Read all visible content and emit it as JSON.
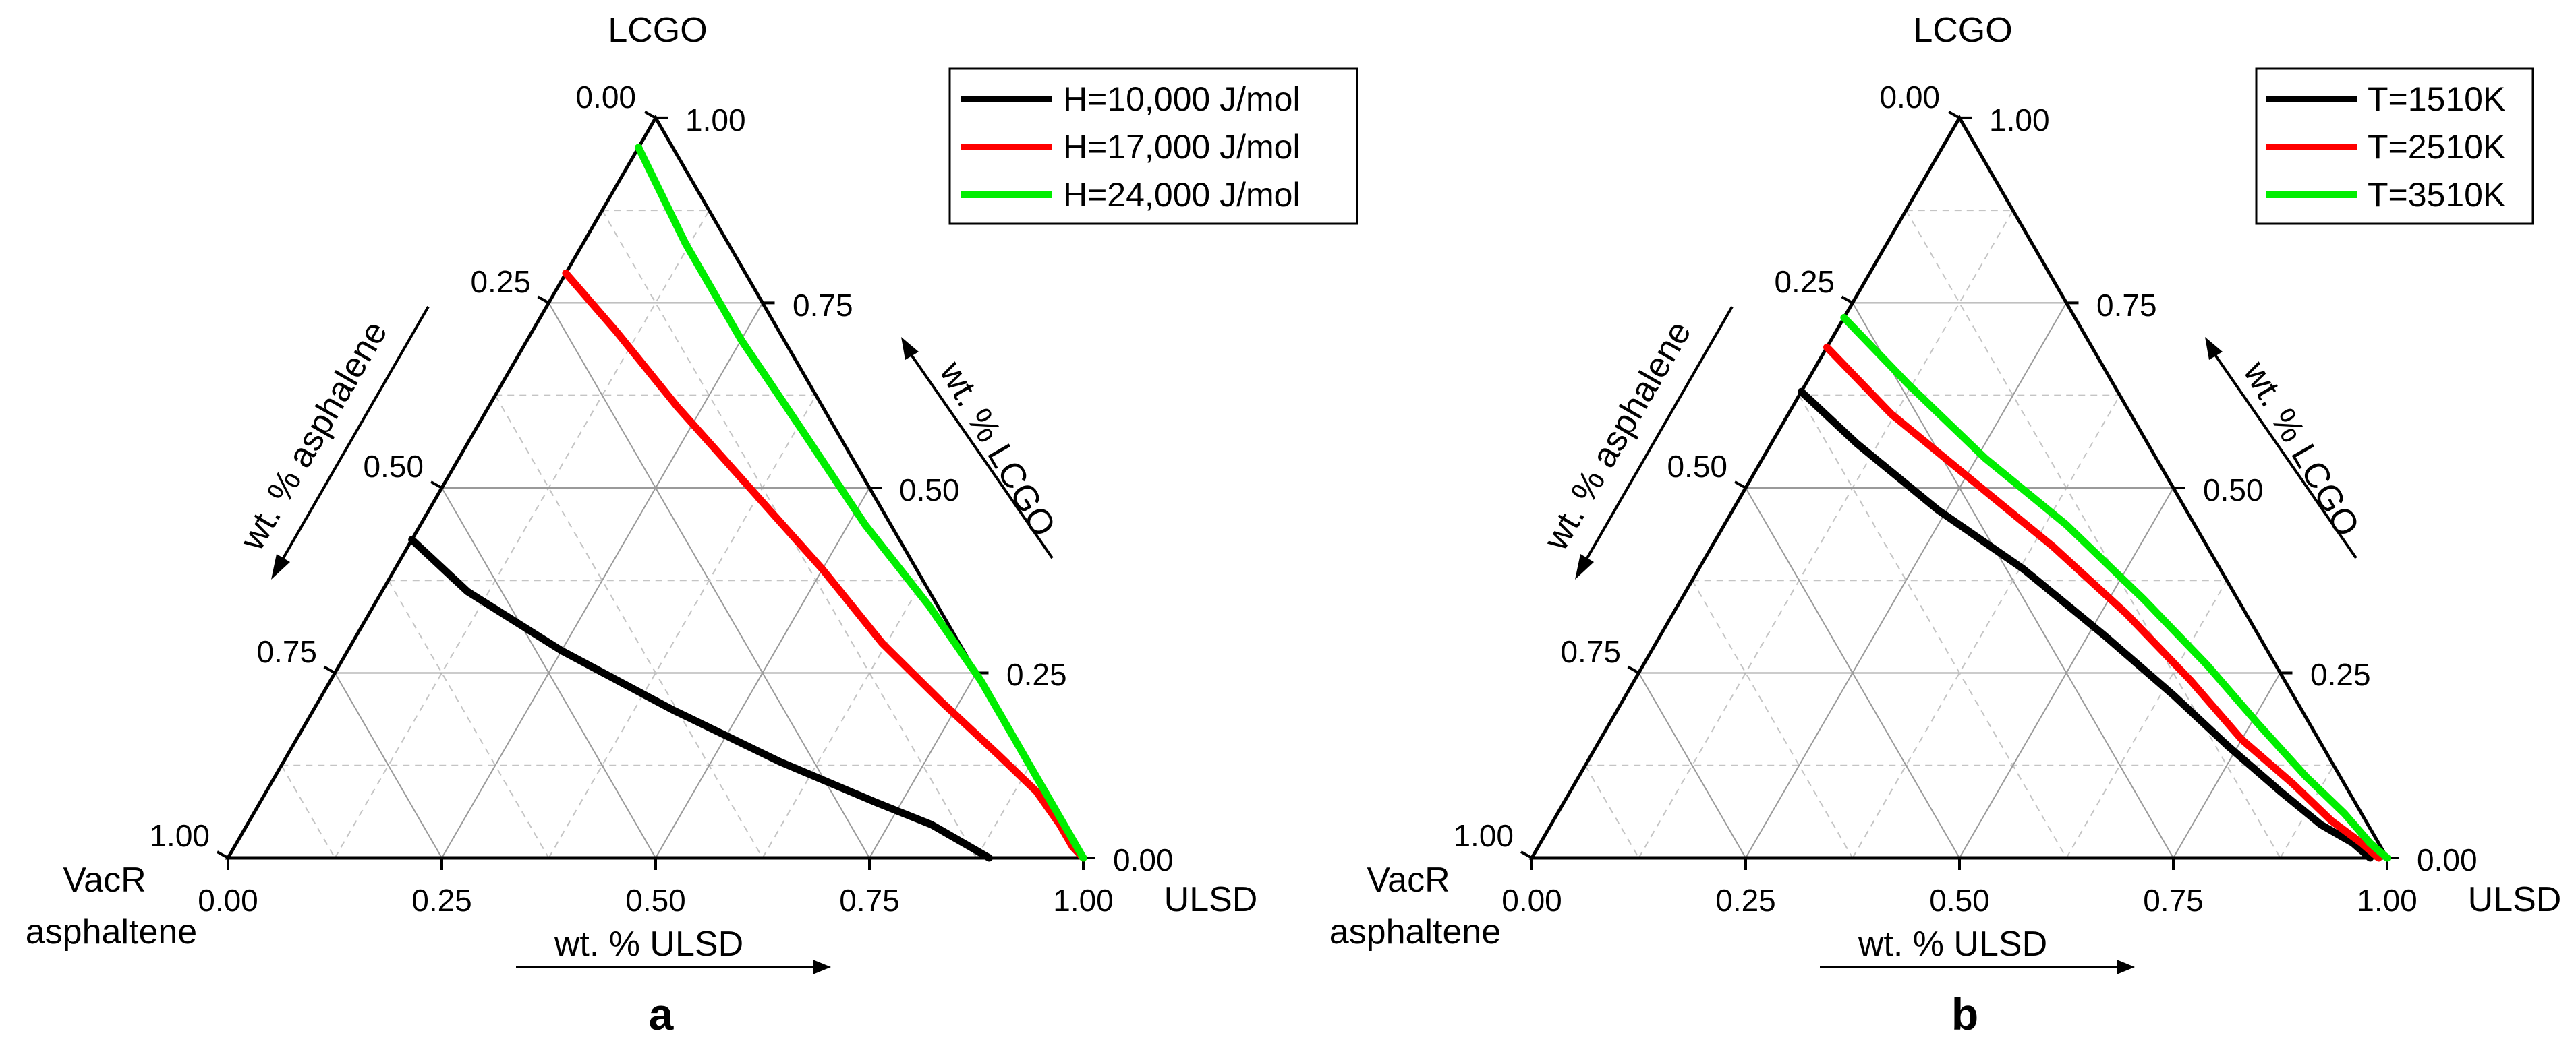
{
  "chart_data": [
    {
      "type": "line",
      "subtype": "ternary",
      "panel_label": "a",
      "vertices": {
        "top": "LCGO",
        "left": [
          "VacR",
          "asphaltene"
        ],
        "right": "ULSD"
      },
      "axis_titles": {
        "left": "wt. % asphalene",
        "right": "wt. % LCGO",
        "bottom": "wt. % ULSD"
      },
      "ticks": {
        "bottom": [
          "0.00",
          "0.25",
          "0.50",
          "0.75",
          "1.00"
        ],
        "right": [
          "0.00",
          "0.25",
          "0.50",
          "0.75",
          "1.00"
        ],
        "left": [
          "0.00",
          "0.25",
          "0.50",
          "0.75",
          "1.00"
        ]
      },
      "composition_order": [
        "ULSD",
        "LCGO"
      ],
      "legend_position": "top-right",
      "series": [
        {
          "name": "H=10,000 J/mol",
          "color": "#000000",
          "points": [
            [
              0.0,
              0.43
            ],
            [
              0.1,
              0.36
            ],
            [
              0.25,
              0.28
            ],
            [
              0.42,
              0.2
            ],
            [
              0.58,
              0.13
            ],
            [
              0.72,
              0.075
            ],
            [
              0.8,
              0.045
            ],
            [
              0.86,
              0.015
            ],
            [
              0.89,
              0.0
            ]
          ]
        },
        {
          "name": "H=17,000 J/mol",
          "color": "#ff0000",
          "points": [
            [
              0.0,
              0.79
            ],
            [
              0.1,
              0.71
            ],
            [
              0.22,
              0.61
            ],
            [
              0.36,
              0.5
            ],
            [
              0.5,
              0.39
            ],
            [
              0.62,
              0.29
            ],
            [
              0.73,
              0.21
            ],
            [
              0.83,
              0.14
            ],
            [
              0.9,
              0.09
            ],
            [
              0.95,
              0.045
            ],
            [
              0.98,
              0.015
            ],
            [
              1.0,
              0.0
            ]
          ]
        },
        {
          "name": "H=24,000 J/mol",
          "color": "#00ee00",
          "points": [
            [
              0.0,
              0.96
            ],
            [
              0.12,
              0.83
            ],
            [
              0.25,
              0.7
            ],
            [
              0.38,
              0.58
            ],
            [
              0.52,
              0.45
            ],
            [
              0.65,
              0.34
            ],
            [
              0.76,
              0.24
            ],
            [
              0.86,
              0.14
            ],
            [
              0.94,
              0.06
            ],
            [
              1.0,
              0.0
            ]
          ]
        }
      ]
    },
    {
      "type": "line",
      "subtype": "ternary",
      "panel_label": "b",
      "vertices": {
        "top": "LCGO",
        "left": [
          "VacR",
          "asphaltene"
        ],
        "right": "ULSD"
      },
      "axis_titles": {
        "left": "wt. % asphalene",
        "right": "wt. % LCGO",
        "bottom": "wt. % ULSD"
      },
      "ticks": {
        "bottom": [
          "0.00",
          "0.25",
          "0.50",
          "0.75",
          "1.00"
        ],
        "right": [
          "0.00",
          "0.25",
          "0.50",
          "0.75",
          "1.00"
        ],
        "left": [
          "0.00",
          "0.25",
          "0.50",
          "0.75",
          "1.00"
        ]
      },
      "composition_order": [
        "ULSD",
        "LCGO"
      ],
      "legend_position": "top-right",
      "series": [
        {
          "name": "T=1510K",
          "color": "#000000",
          "points": [
            [
              0.0,
              0.63
            ],
            [
              0.1,
              0.56
            ],
            [
              0.24,
              0.47
            ],
            [
              0.38,
              0.39
            ],
            [
              0.52,
              0.3
            ],
            [
              0.64,
              0.22
            ],
            [
              0.74,
              0.15
            ],
            [
              0.83,
              0.09
            ],
            [
              0.9,
              0.045
            ],
            [
              0.95,
              0.02
            ],
            [
              0.98,
              0.0
            ]
          ]
        },
        {
          "name": "T=2510K",
          "color": "#ff0000",
          "points": [
            [
              0.0,
              0.69
            ],
            [
              0.12,
              0.6
            ],
            [
              0.26,
              0.51
            ],
            [
              0.4,
              0.42
            ],
            [
              0.53,
              0.33
            ],
            [
              0.65,
              0.24
            ],
            [
              0.75,
              0.16
            ],
            [
              0.84,
              0.1
            ],
            [
              0.91,
              0.05
            ],
            [
              0.96,
              0.02
            ],
            [
              0.99,
              0.0
            ]
          ]
        },
        {
          "name": "T=3510K",
          "color": "#00ee00",
          "points": [
            [
              0.0,
              0.73
            ],
            [
              0.12,
              0.64
            ],
            [
              0.26,
              0.54
            ],
            [
              0.4,
              0.45
            ],
            [
              0.54,
              0.35
            ],
            [
              0.66,
              0.26
            ],
            [
              0.76,
              0.18
            ],
            [
              0.85,
              0.11
            ],
            [
              0.92,
              0.06
            ],
            [
              0.97,
              0.02
            ],
            [
              1.0,
              0.0
            ]
          ]
        }
      ]
    }
  ]
}
